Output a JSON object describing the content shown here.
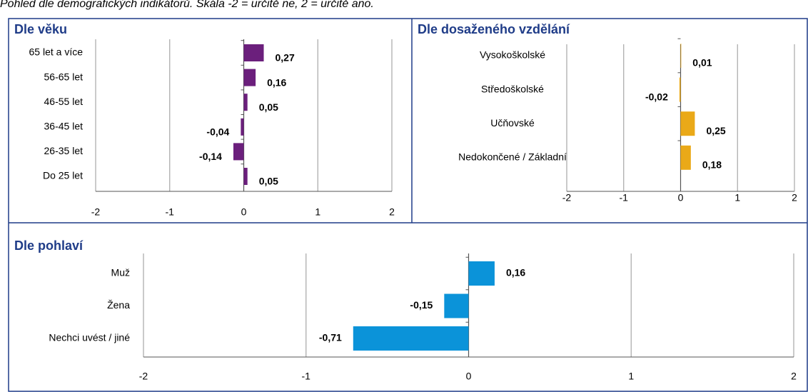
{
  "caption": "Pohled dle demografických indikátorů. Škála -2 = určitě ne, 2 = určitě ano.",
  "chart_data": [
    {
      "type": "barh",
      "title": "Dle věku",
      "categories": [
        "65 let a více",
        "56-65 let",
        "46-55 let",
        "36-45 let",
        "26-35 let",
        "Do 25 let"
      ],
      "values": [
        0.27,
        0.16,
        0.05,
        -0.04,
        -0.14,
        0.05
      ],
      "value_labels": [
        "0,27",
        "0,16",
        "0,05",
        "-0,04",
        "-0,14",
        "0,05"
      ],
      "color": "#6b1f7c",
      "xlim": [
        -2,
        2
      ],
      "xticks": [
        -2,
        -1,
        0,
        1,
        2
      ],
      "grid": true
    },
    {
      "type": "barh",
      "title": "Dle dosaženého vzdělání",
      "categories": [
        "Vysokoškolské",
        "Středoškolské",
        "Učňovské",
        "Nedokončené / Základní"
      ],
      "values": [
        0.01,
        -0.02,
        0.25,
        0.18
      ],
      "value_labels": [
        "0,01",
        "-0,02",
        "0,25",
        "0,18"
      ],
      "color": "#eaa918",
      "xlim": [
        -2,
        2
      ],
      "xticks": [
        -2,
        -1,
        0,
        1,
        2
      ],
      "grid": true
    },
    {
      "type": "barh",
      "title": "Dle pohlaví",
      "categories": [
        "Muž",
        "Žena",
        "Nechci uvést / jiné"
      ],
      "values": [
        0.16,
        -0.15,
        -0.71
      ],
      "value_labels": [
        "0,16",
        "-0,15",
        "-0,71"
      ],
      "color": "#0b93d9",
      "xlim": [
        -2,
        2
      ],
      "xticks": [
        -2,
        -1,
        0,
        1,
        2
      ],
      "grid": true
    }
  ]
}
